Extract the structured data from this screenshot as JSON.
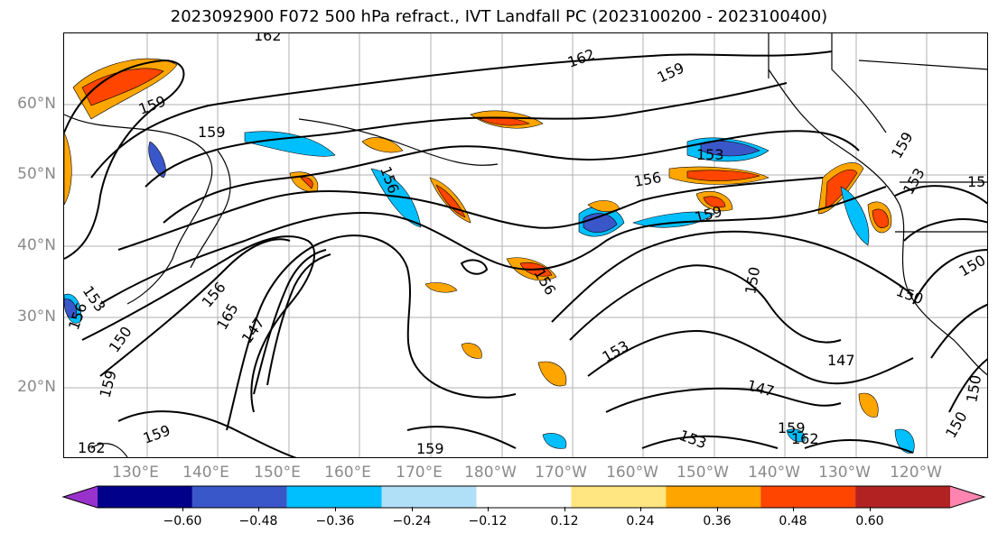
{
  "title": "2023092900 F072 500 hPa refract., IVT Landfall PC (2023100200 - 2023100400)",
  "lat_labels": [
    "60°N",
    "50°N",
    "40°N",
    "30°N",
    "20°N"
  ],
  "lon_labels": [
    "130°E",
    "140°E",
    "150°E",
    "160°E",
    "170°E",
    "180°W",
    "170°W",
    "160°W",
    "150°W",
    "140°W",
    "130°W",
    "120°W"
  ],
  "contour_labels": [
    "162",
    "162",
    "159",
    "159",
    "159",
    "159",
    "156",
    "156",
    "156",
    "153",
    "153",
    "150",
    "150",
    "147",
    "147",
    "165",
    "159",
    "153",
    "150",
    "159",
    "162",
    "147",
    "150",
    "153",
    "156",
    "156",
    "159",
    "162",
    "159",
    "153",
    "150",
    "150",
    "159",
    "15"
  ],
  "colorbar": {
    "ticks": [
      "−0.60",
      "−0.48",
      "−0.36",
      "−0.24",
      "−0.12",
      "0.12",
      "0.24",
      "0.36",
      "0.48",
      "0.60"
    ],
    "colors": [
      "#9932cc",
      "#00008b",
      "#3a57c9",
      "#00bfff",
      "#b0e0f8",
      "#ffffff",
      "#ffe680",
      "#ffa500",
      "#ff4500",
      "#b22222",
      "#ff85b0"
    ]
  }
}
